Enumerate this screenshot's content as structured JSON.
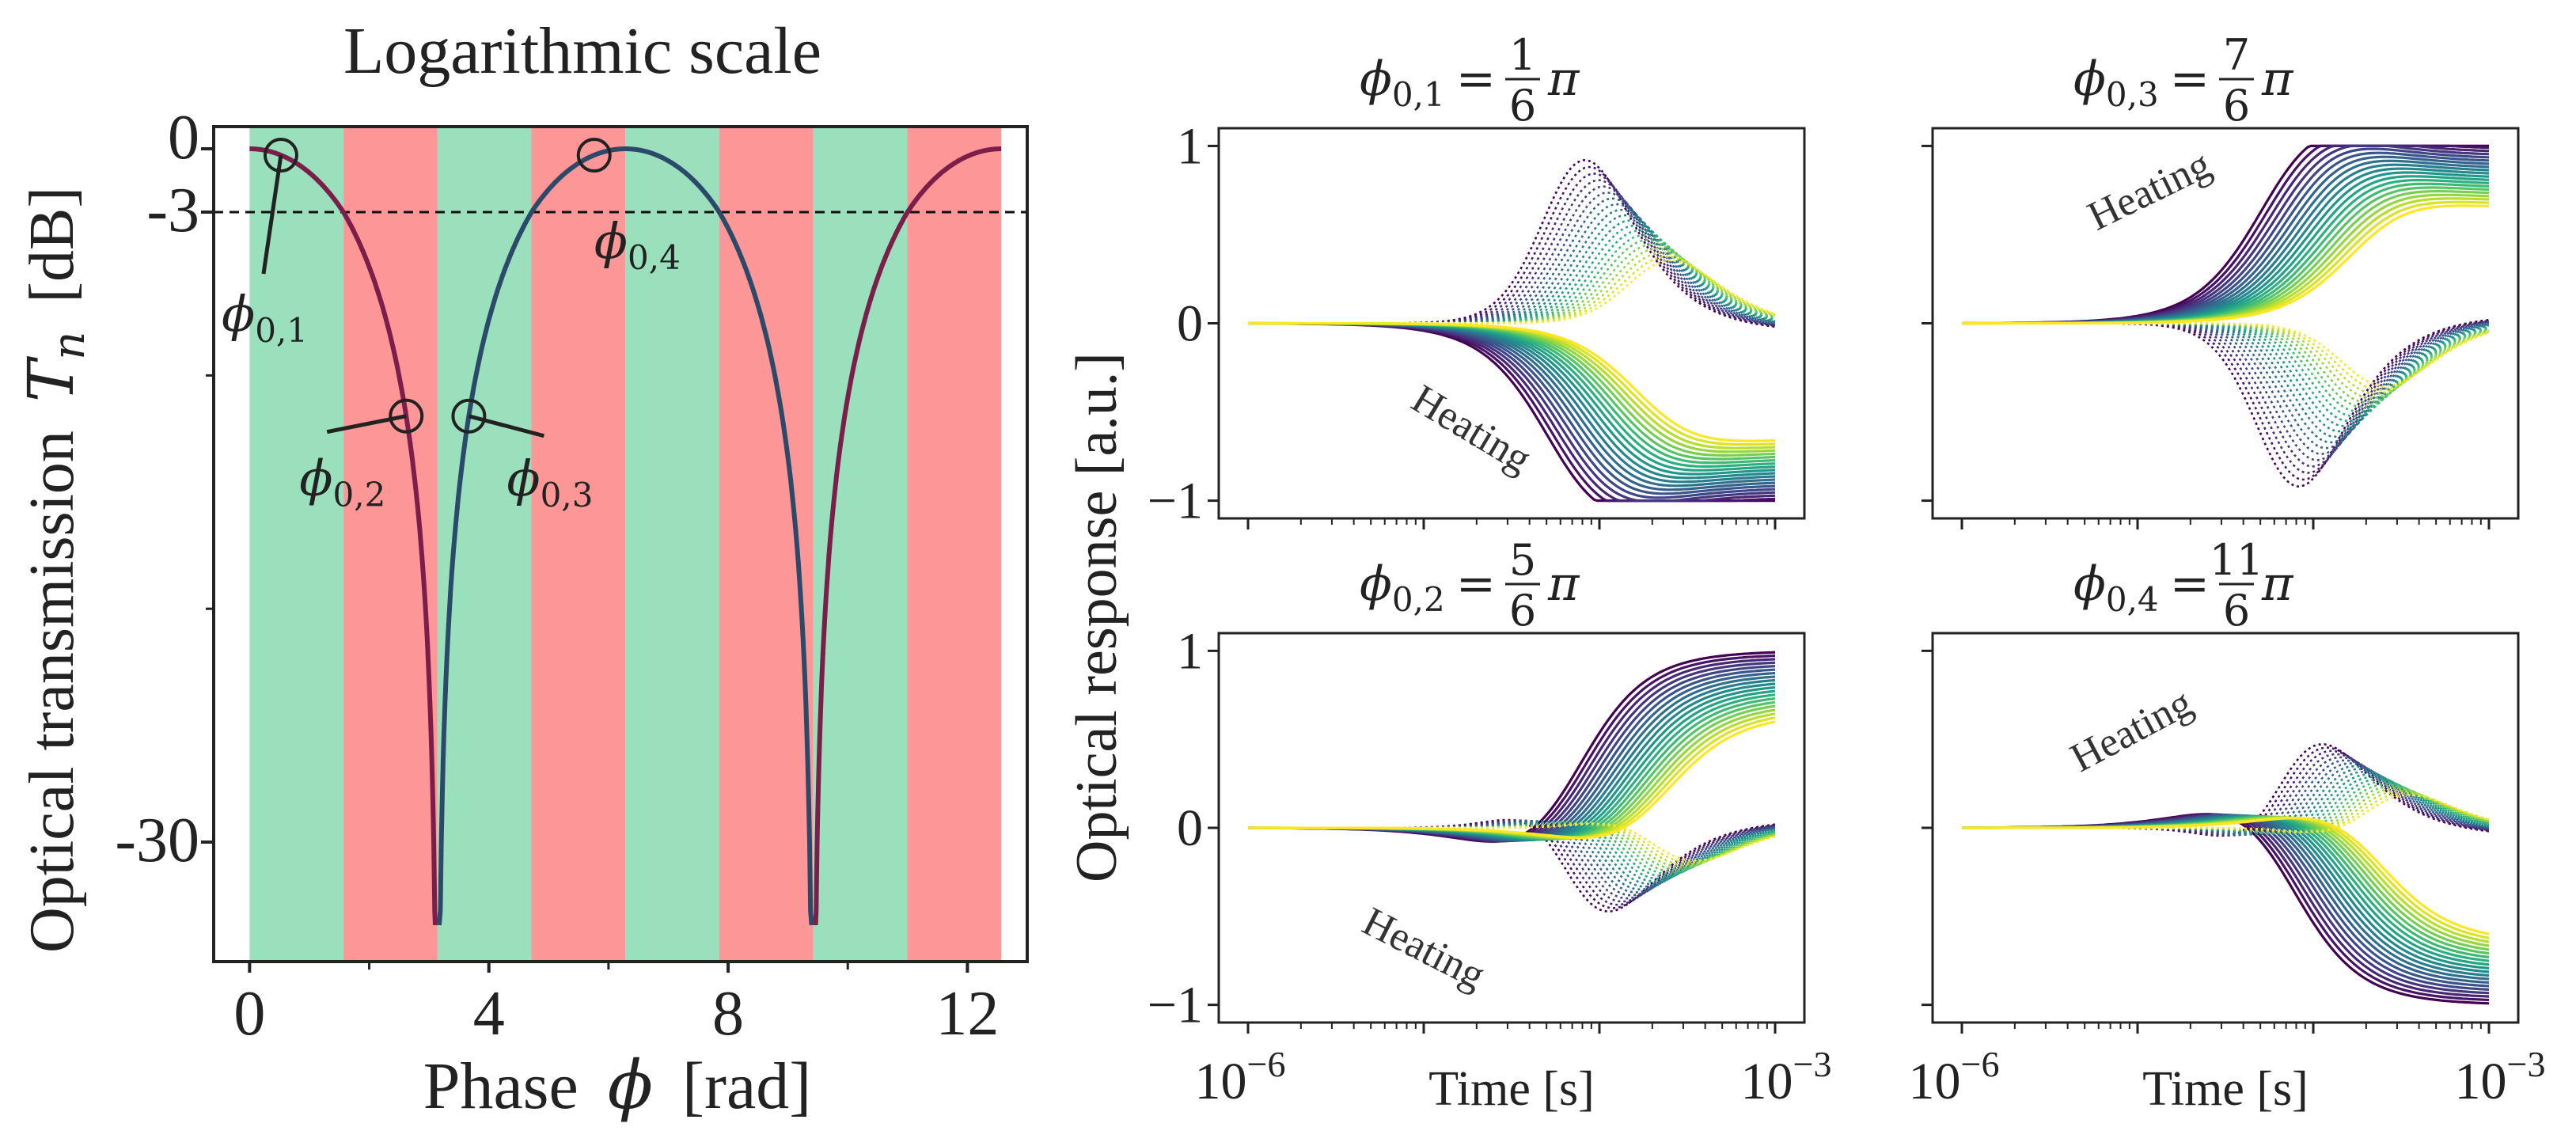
{
  "chart_data": [
    {
      "type": "line",
      "title": "Logarithmic scale",
      "xlabel_text": "Phase",
      "xlabel_symbol": "ϕ",
      "xlabel_unit": "[rad]",
      "ylabel_text": "Optical transmission",
      "ylabel_symbol": "T",
      "ylabel_sub": "n",
      "ylabel_unit": "[dB]",
      "xlim": [
        -0.6,
        13.0
      ],
      "ylim": [
        -36,
        1.2
      ],
      "x_ticks": [
        0,
        4,
        8,
        12
      ],
      "x_tick_labels": [
        "0",
        "4",
        "8",
        "12"
      ],
      "y_ticks": [
        0,
        -3,
        -30
      ],
      "y_tick_labels": [
        "0",
        "-3",
        "-30"
      ],
      "threshold_db": -3,
      "bands": [
        {
          "from": 0.0,
          "to": 1.571,
          "color": "#9be0bd"
        },
        {
          "from": 1.571,
          "to": 3.142,
          "color": "#fd9696"
        },
        {
          "from": 3.142,
          "to": 4.712,
          "color": "#9be0bd"
        },
        {
          "from": 4.712,
          "to": 6.283,
          "color": "#fd9696"
        },
        {
          "from": 6.283,
          "to": 7.854,
          "color": "#9be0bd"
        },
        {
          "from": 7.854,
          "to": 9.425,
          "color": "#fd9696"
        },
        {
          "from": 9.425,
          "to": 10.996,
          "color": "#9be0bd"
        },
        {
          "from": 10.996,
          "to": 12.566,
          "color": "#fd9696"
        }
      ],
      "curve": {
        "formula": "10*log10(cos^2(phi/2))",
        "x_range": [
          0,
          12.566
        ],
        "floor_db": -33,
        "colors": [
          "#7b1e4a",
          "#2b4a6a"
        ]
      },
      "operating_points": [
        {
          "label_sym": "ϕ",
          "label_sub": "0,1",
          "x": 0.524
        },
        {
          "label_sym": "ϕ",
          "label_sub": "0,2",
          "x": 2.618
        },
        {
          "label_sym": "ϕ",
          "label_sub": "0,3",
          "x": 3.665
        },
        {
          "label_sym": "ϕ",
          "label_sub": "0,4",
          "x": 5.76
        }
      ]
    },
    {
      "type": "line",
      "ylabel": "Optical response [a.u.]",
      "xlabel": "Time [s]",
      "x_tick_labels": {
        "left_base": "10",
        "left_exp": "−6",
        "right_base": "10",
        "right_exp": "−3"
      },
      "x_log_range": [
        -6,
        -3
      ],
      "ylim": [
        -1.1,
        1.1
      ],
      "y_ticks": [
        1,
        0,
        -1
      ],
      "y_tick_labels": [
        "1",
        "0",
        "−1"
      ],
      "n_curves": 20,
      "colormap": "viridis",
      "panels": [
        {
          "title_sym": "ϕ",
          "title_sub": "0,1",
          "title_eq": "=",
          "frac_num": "1",
          "frac_den": "6",
          "title_pi": "π",
          "phi_over_pi": 0.1667,
          "annotation": "Heating"
        },
        {
          "title_sym": "ϕ",
          "title_sub": "0,3",
          "title_eq": "=",
          "frac_num": "7",
          "frac_den": "6",
          "title_pi": "π",
          "phi_over_pi": 1.1667,
          "annotation": "Heating"
        },
        {
          "title_sym": "ϕ",
          "title_sub": "0,2",
          "title_eq": "=",
          "frac_num": "5",
          "frac_den": "6",
          "title_pi": "π",
          "phi_over_pi": 0.8333,
          "annotation": "Heating"
        },
        {
          "title_sym": "ϕ",
          "title_sub": "0,4",
          "title_eq": "=",
          "frac_num": "11",
          "frac_den": "6",
          "title_pi": "π",
          "phi_over_pi": 1.8333,
          "annotation": "Heating"
        }
      ]
    }
  ]
}
